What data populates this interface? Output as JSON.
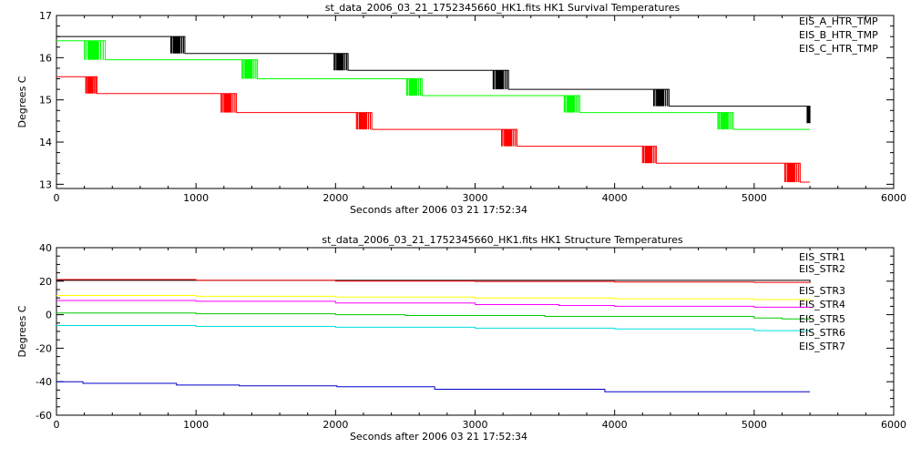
{
  "chart_data": [
    {
      "type": "line",
      "title": "st_data_2006_03_21_1752345660_HK1.fits HK1 Survival Temperatures",
      "xlabel": "Seconds after 2006 03 21 17:52:34",
      "ylabel": "Degrees C",
      "xlim": [
        0,
        6000
      ],
      "ylim": [
        12.9,
        17
      ],
      "xticks": [
        0,
        1000,
        2000,
        3000,
        4000,
        5000,
        6000
      ],
      "yticks": [
        13,
        14,
        15,
        16,
        17
      ],
      "legend_position": "top-right",
      "grid": false,
      "series": [
        {
          "name": "EIS_A_HTR_TMP",
          "color": "#000000",
          "x": [
            0,
            820,
            920,
            1990,
            2090,
            3130,
            3240,
            4280,
            4390,
            5380,
            5400
          ],
          "y": [
            16.5,
            16.5,
            16.1,
            16.1,
            15.7,
            15.7,
            15.25,
            15.25,
            14.85,
            14.85,
            14.45
          ],
          "spikes": [
            [
              820,
              920
            ],
            [
              1990,
              2090
            ],
            [
              3130,
              3240
            ],
            [
              4280,
              4390
            ],
            [
              5380,
              5400
            ]
          ]
        },
        {
          "name": "EIS_B_HTR_TMP",
          "color": "#ff0000",
          "x": [
            0,
            210,
            290,
            1180,
            1290,
            2150,
            2260,
            3190,
            3300,
            4200,
            4300,
            5220,
            5330,
            5400
          ],
          "y": [
            15.55,
            15.55,
            15.15,
            15.15,
            14.7,
            14.7,
            14.3,
            14.3,
            13.9,
            13.9,
            13.5,
            13.5,
            13.05,
            13.05
          ],
          "spikes": [
            [
              210,
              290
            ],
            [
              1180,
              1290
            ],
            [
              2150,
              2260
            ],
            [
              3190,
              3300
            ],
            [
              4200,
              4300
            ],
            [
              5220,
              5330
            ]
          ]
        },
        {
          "name": "EIS_C_HTR_TMP",
          "color": "#00ff00",
          "x": [
            0,
            200,
            350,
            1330,
            1440,
            2510,
            2620,
            3640,
            3750,
            4740,
            4850,
            5400
          ],
          "y": [
            16.4,
            16.4,
            15.95,
            15.95,
            15.5,
            15.5,
            15.1,
            15.1,
            14.7,
            14.7,
            14.3,
            14.3
          ],
          "spikes": [
            [
              200,
              350
            ],
            [
              1330,
              1440
            ],
            [
              2510,
              2620
            ],
            [
              3640,
              3750
            ],
            [
              4740,
              4850
            ]
          ]
        }
      ]
    },
    {
      "type": "line",
      "title": "st_data_2006_03_21_1752345660_HK1.fits HK1 Structure Temperatures",
      "xlabel": "Seconds after 2006 03 21 17:52:34",
      "ylabel": "Degrees C",
      "xlim": [
        0,
        6000
      ],
      "ylim": [
        -60,
        40
      ],
      "xticks": [
        0,
        1000,
        2000,
        3000,
        4000,
        5000,
        6000
      ],
      "yticks": [
        -60,
        -40,
        -20,
        0,
        20,
        40
      ],
      "legend_position": "top-right",
      "grid": false,
      "series": [
        {
          "name": "EIS_STR1",
          "color": "#000000",
          "x": [
            0,
            5400
          ],
          "y": [
            20.5,
            19.0
          ]
        },
        {
          "name": "EIS_STR2",
          "color": "#ff0000",
          "x": [
            0,
            1000,
            2000,
            3000,
            4000,
            5000,
            5400
          ],
          "y": [
            21.0,
            20.5,
            20.0,
            19.8,
            19.5,
            19.3,
            19.2
          ]
        },
        {
          "name": "EIS_STR3",
          "color": "#00cc00",
          "x": [
            0,
            1000,
            2000,
            2500,
            3500,
            5000,
            5200,
            5400
          ],
          "y": [
            1.0,
            0.5,
            0.0,
            -0.5,
            -1.0,
            -2.0,
            -2.5,
            -3.0
          ]
        },
        {
          "name": "EIS_STR4",
          "color": "#0000cc",
          "x": [
            0,
            180,
            190,
            850,
            860,
            1300,
            1310,
            2000,
            2010,
            2700,
            2710,
            3920,
            3930,
            5400
          ],
          "y": [
            -40.0,
            -40.0,
            -41.0,
            -41.0,
            -42.0,
            -42.0,
            -42.5,
            -42.5,
            -43.0,
            -43.0,
            -44.5,
            -44.5,
            -46.0,
            -46.0
          ]
        },
        {
          "name": "EIS_STR5",
          "color": "#00dddd",
          "x": [
            0,
            1000,
            2000,
            3000,
            4000,
            5000,
            5400
          ],
          "y": [
            -6.5,
            -7.0,
            -7.5,
            -8.0,
            -8.5,
            -9.5,
            -10.0
          ]
        },
        {
          "name": "EIS_STR6",
          "color": "#ff00ff",
          "x": [
            0,
            1000,
            2000,
            3000,
            3600,
            4000,
            5000,
            5400
          ],
          "y": [
            8.5,
            8.0,
            7.0,
            6.0,
            5.5,
            5.0,
            4.5,
            4.0
          ]
        },
        {
          "name": "EIS_STR7",
          "color": "#ffff00",
          "x": [
            0,
            1000,
            2000,
            3000,
            4000,
            5000,
            5400
          ],
          "y": [
            11.5,
            11.0,
            10.5,
            10.0,
            9.5,
            9.0,
            8.5
          ]
        }
      ]
    }
  ]
}
